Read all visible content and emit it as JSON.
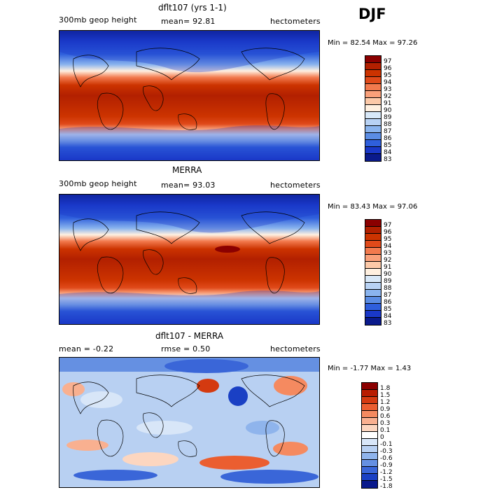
{
  "season": "DJF",
  "panels": [
    {
      "title": "dflt107 (yrs 1-1)",
      "left_label": "300mb geop height",
      "mid_label": "mean=  92.81",
      "unit_label": "hectometers",
      "minmax": "Min =  82.54 Max =  97.26",
      "colorbar": {
        "levels": [
          "97",
          "96",
          "95",
          "94",
          "93",
          "92",
          "91",
          "90",
          "89",
          "88",
          "87",
          "86",
          "85",
          "84",
          "83"
        ],
        "colors": [
          "#8b0000",
          "#b22000",
          "#cc3300",
          "#e04a1a",
          "#f27a4e",
          "#f9a07a",
          "#fcc9a8",
          "#fff0e0",
          "#d8e8f8",
          "#b8d2f4",
          "#8ab4ee",
          "#5b8de4",
          "#2f5fdc",
          "#1a38c8",
          "#0a1a8c"
        ]
      }
    },
    {
      "title": "MERRA",
      "left_label": "300mb geop height",
      "mid_label": "mean=  93.03",
      "unit_label": "hectometers",
      "minmax": "Min =  83.43 Max =  97.06",
      "colorbar": {
        "levels": [
          "97",
          "96",
          "95",
          "94",
          "93",
          "92",
          "91",
          "90",
          "89",
          "88",
          "87",
          "86",
          "85",
          "84",
          "83"
        ],
        "colors": [
          "#8b0000",
          "#b22000",
          "#cc3300",
          "#e04a1a",
          "#f27a4e",
          "#f9a07a",
          "#fcc9a8",
          "#fff0e0",
          "#d8e8f8",
          "#b8d2f4",
          "#8ab4ee",
          "#5b8de4",
          "#2f5fdc",
          "#1a38c8",
          "#0a1a8c"
        ]
      }
    },
    {
      "title": "dflt107 - MERRA",
      "left_label": "mean =   -0.22",
      "mid_label": "rmse =   0.50",
      "unit_label": "hectometers",
      "minmax": "Min =  -1.77 Max =   1.43",
      "colorbar": {
        "levels": [
          "1.8",
          "1.5",
          "1.2",
          "0.9",
          "0.6",
          "0.3",
          "0.1",
          "0",
          "-0.1",
          "-0.3",
          "-0.6",
          "-0.9",
          "-1.2",
          "-1.5",
          "-1.8"
        ],
        "colors": [
          "#8b0000",
          "#b81c00",
          "#d43a10",
          "#eb5e30",
          "#f58a60",
          "#f9b090",
          "#fcd6c0",
          "#ffffff",
          "#d8e6f8",
          "#b8d0f2",
          "#8fb4ec",
          "#6590e2",
          "#3a66d8",
          "#1a40c4",
          "#0a1a8c"
        ]
      }
    }
  ]
}
